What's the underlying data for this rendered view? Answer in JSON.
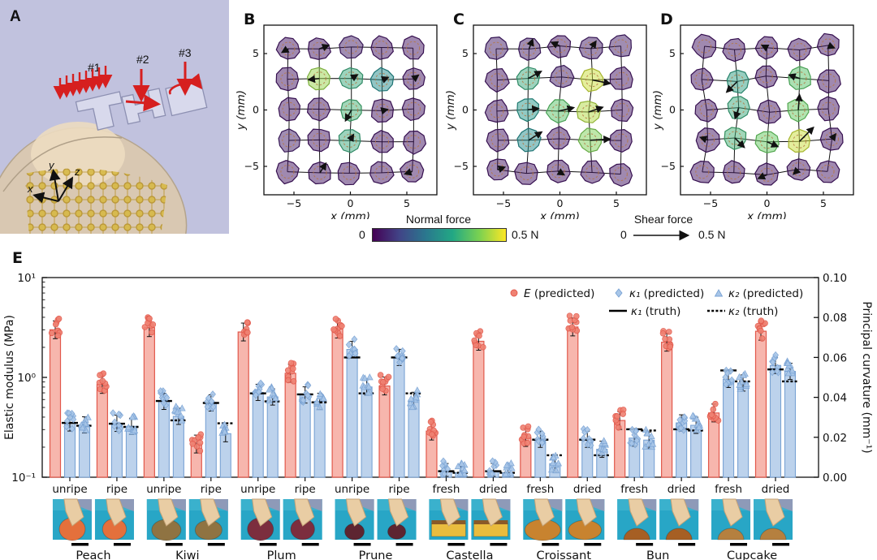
{
  "panelA": {
    "label": "A",
    "stamps": [
      "#1",
      "#2",
      "#3"
    ],
    "axis_labels": [
      "x",
      "y",
      "z"
    ],
    "background_color": "#c1c2de",
    "arrow_color": "#d61f1f"
  },
  "force_maps": {
    "xlabel": "x (mm)",
    "ylabel": "y (mm)",
    "xticks": [
      "−5",
      "0",
      "5"
    ],
    "yticks": [
      "5",
      "0",
      "−5"
    ],
    "colorbar": {
      "title": "Normal force",
      "min_label": "0",
      "max_label": "0.5 N"
    },
    "shear_legend": {
      "title": "Shear force",
      "min_label": "0",
      "max_label": "0.5 N"
    }
  },
  "chart_data": [
    {
      "type": "heatmap",
      "panel": "B",
      "stamp_shape": "T",
      "x_mm": [
        -5.5,
        -2.75,
        0,
        2.75,
        5.5
      ],
      "y_mm": [
        5.5,
        2.75,
        0,
        -2.75,
        -5.5
      ],
      "normal_force_N": [
        [
          0.03,
          0.03,
          0.04,
          0.03,
          0.03
        ],
        [
          0.03,
          0.42,
          0.3,
          0.24,
          0.03
        ],
        [
          0.03,
          0.03,
          0.32,
          0.03,
          0.03
        ],
        [
          0.04,
          0.03,
          0.3,
          0.03,
          0.03
        ],
        [
          0.03,
          0.03,
          0.03,
          0.03,
          0.03
        ]
      ],
      "force_range_N": [
        0,
        0.5
      ],
      "distort": 1.5,
      "shear_arrows": [
        {
          "x": -5.5,
          "y": 5.5,
          "dx": -0.5,
          "dy": -0.3
        },
        {
          "x": -2.75,
          "y": 5.5,
          "dx": 0.8,
          "dy": 0.3
        },
        {
          "x": -2.75,
          "y": 2.75,
          "dx": -0.9,
          "dy": -0.1
        },
        {
          "x": 0,
          "y": 2.75,
          "dx": 0.5,
          "dy": 0.3
        },
        {
          "x": 2.75,
          "y": 2.75,
          "dx": 0.5,
          "dy": 0.2
        },
        {
          "x": 5.5,
          "y": 2.75,
          "dx": 0.4,
          "dy": 0.3
        },
        {
          "x": 0,
          "y": 0,
          "dx": -0.5,
          "dy": -0.9
        },
        {
          "x": 2.75,
          "y": 0,
          "dx": 0.4,
          "dy": 0.1
        },
        {
          "x": 0,
          "y": -2.75,
          "dx": 0.3,
          "dy": 0.5
        },
        {
          "x": -2.75,
          "y": -5.5,
          "dx": 0.5,
          "dy": 0.8
        },
        {
          "x": 5.5,
          "y": -5.5,
          "dx": -0.6,
          "dy": -0.2
        }
      ]
    },
    {
      "type": "heatmap",
      "panel": "C",
      "stamp_shape": "H",
      "x_mm": [
        -5.5,
        -2.75,
        0,
        2.75,
        5.5
      ],
      "y_mm": [
        5.5,
        2.75,
        0,
        -2.75,
        -5.5
      ],
      "normal_force_N": [
        [
          0.04,
          0.04,
          0.03,
          0.04,
          0.04
        ],
        [
          0.03,
          0.3,
          0.04,
          0.46,
          0.03
        ],
        [
          0.03,
          0.26,
          0.36,
          0.44,
          0.03
        ],
        [
          0.03,
          0.24,
          0.03,
          0.4,
          0.03
        ],
        [
          0.03,
          0.03,
          0.03,
          0.03,
          0.03
        ]
      ],
      "force_range_N": [
        0,
        0.5
      ],
      "distort": 3,
      "shear_arrows": [
        {
          "x": -2.75,
          "y": 5.5,
          "dx": 0.3,
          "dy": 0.8
        },
        {
          "x": 0,
          "y": 5.5,
          "dx": -0.7,
          "dy": 0.3
        },
        {
          "x": 2.75,
          "y": 5.5,
          "dx": 0.4,
          "dy": 0.6
        },
        {
          "x": -2.75,
          "y": 2.75,
          "dx": 1.1,
          "dy": 0.6
        },
        {
          "x": 2.75,
          "y": 2.75,
          "dx": 1.5,
          "dy": -0.3
        },
        {
          "x": -2.75,
          "y": 0,
          "dx": 0.9,
          "dy": 0.1
        },
        {
          "x": 0,
          "y": 0,
          "dx": 1.3,
          "dy": 0.3
        },
        {
          "x": 2.75,
          "y": 0,
          "dx": 1.2,
          "dy": 0.4
        },
        {
          "x": -2.75,
          "y": -2.75,
          "dx": 1.1,
          "dy": 0.7
        },
        {
          "x": 2.75,
          "y": -2.75,
          "dx": 1.7,
          "dy": 0.1
        },
        {
          "x": -5.5,
          "y": -5.5,
          "dx": 0.6,
          "dy": 0.2
        },
        {
          "x": 0,
          "y": -5.5,
          "dx": 0.5,
          "dy": -0.3
        }
      ]
    },
    {
      "type": "heatmap",
      "panel": "D",
      "stamp_shape": "U",
      "x_mm": [
        -5.5,
        -2.75,
        0,
        2.75,
        5.5
      ],
      "y_mm": [
        5.5,
        2.75,
        0,
        -2.75,
        -5.5
      ],
      "normal_force_N": [
        [
          0.03,
          0.03,
          0.03,
          0.03,
          0.03
        ],
        [
          0.03,
          0.28,
          0.03,
          0.36,
          0.03
        ],
        [
          0.03,
          0.3,
          0.03,
          0.38,
          0.03
        ],
        [
          0.03,
          0.32,
          0.38,
          0.46,
          0.03
        ],
        [
          0.03,
          0.03,
          0.03,
          0.03,
          0.03
        ]
      ],
      "force_range_N": [
        0,
        0.5
      ],
      "distort": 4,
      "shear_arrows": [
        {
          "x": -2.75,
          "y": 2.75,
          "dx": -0.9,
          "dy": -0.9
        },
        {
          "x": 2.75,
          "y": 2.75,
          "dx": -0.9,
          "dy": 0.3
        },
        {
          "x": -2.75,
          "y": 0,
          "dx": -0.3,
          "dy": -0.9
        },
        {
          "x": 2.75,
          "y": 0,
          "dx": 0.1,
          "dy": 1.3
        },
        {
          "x": -2.75,
          "y": -2.75,
          "dx": 0.8,
          "dy": -0.8
        },
        {
          "x": 0,
          "y": -2.75,
          "dx": 0.9,
          "dy": -0.4
        },
        {
          "x": 2.75,
          "y": -2.75,
          "dx": 1.2,
          "dy": 1.2
        },
        {
          "x": 0,
          "y": 5.5,
          "dx": -0.4,
          "dy": 0.2
        },
        {
          "x": 5.5,
          "y": 5.5,
          "dx": 0.5,
          "dy": -0.2
        },
        {
          "x": -5.5,
          "y": -2.75,
          "dx": -0.6,
          "dy": 0.2
        },
        {
          "x": 0,
          "y": -5.5,
          "dx": -0.7,
          "dy": -0.3
        },
        {
          "x": 2.75,
          "y": -5.5,
          "dx": -0.4,
          "dy": -0.4
        },
        {
          "x": 5.5,
          "y": -2.75,
          "dx": 0.3,
          "dy": 0.4
        }
      ]
    },
    {
      "type": "bar",
      "panel": "E",
      "ylabel_left": "Elastic modulus (MPa)",
      "ylabel_right": "Principal curvature (mm⁻¹)",
      "yaxis_left": {
        "scale": "log",
        "min": 0.1,
        "max": 10,
        "tick_labels": [
          "10⁻¹",
          "10⁰",
          "10¹"
        ]
      },
      "yaxis_right": {
        "scale": "linear",
        "min": 0,
        "max": 0.1,
        "tick_labels": [
          "0.00",
          "0.02",
          "0.04",
          "0.06",
          "0.08",
          "0.10"
        ]
      },
      "legend": [
        "E (predicted)",
        "κ₁ (predicted)",
        "κ₂ (predicted)",
        "κ₁ (truth)",
        "κ₂ (truth)"
      ],
      "groups": [
        {
          "food": "Peach",
          "condition": "unripe",
          "E_MPa": 3.0,
          "k1_pred": 0.0272,
          "k2_pred": 0.0262,
          "k1_truth": 0.0272,
          "k2_truth": 0.0258
        },
        {
          "food": "Peach",
          "condition": "ripe",
          "E_MPa": 0.85,
          "k1_pred": 0.027,
          "k2_pred": 0.0255,
          "k1_truth": 0.0268,
          "k2_truth": 0.0252
        },
        {
          "food": "Kiwi",
          "condition": "unripe",
          "E_MPa": 3.15,
          "k1_pred": 0.038,
          "k2_pred": 0.0305,
          "k1_truth": 0.0382,
          "k2_truth": 0.0285
        },
        {
          "food": "Kiwi",
          "condition": "ripe",
          "E_MPa": 0.215,
          "k1_pred": 0.0372,
          "k2_pred": 0.0218,
          "k1_truth": 0.0372,
          "k2_truth": 0.027
        },
        {
          "food": "Plum",
          "condition": "unripe",
          "E_MPa": 2.85,
          "k1_pred": 0.0425,
          "k2_pred": 0.0402,
          "k1_truth": 0.042,
          "k2_truth": 0.038
        },
        {
          "food": "Plum",
          "condition": "ripe",
          "E_MPa": 1.1,
          "k1_pred": 0.0412,
          "k2_pred": 0.038,
          "k1_truth": 0.0415,
          "k2_truth": 0.0375
        },
        {
          "food": "Prune",
          "condition": "unripe",
          "E_MPa": 3.05,
          "k1_pred": 0.064,
          "k2_pred": 0.0452,
          "k1_truth": 0.06,
          "k2_truth": 0.042
        },
        {
          "food": "Prune",
          "condition": "ripe",
          "E_MPa": 0.82,
          "k1_pred": 0.06,
          "k2_pred": 0.0385,
          "k1_truth": 0.06,
          "k2_truth": 0.042
        },
        {
          "food": "Castella",
          "condition": "fresh",
          "E_MPa": 0.29,
          "k1_pred": 0.0028,
          "k2_pred": 0.0022,
          "k1_truth": 0.003,
          "k2_truth": 0.0022
        },
        {
          "food": "Castella",
          "condition": "dried",
          "E_MPa": 2.3,
          "k1_pred": 0.0028,
          "k2_pred": 0.0022,
          "k1_truth": 0.003,
          "k2_truth": 0.0022
        },
        {
          "food": "Croissant",
          "condition": "fresh",
          "E_MPa": 0.25,
          "k1_pred": 0.019,
          "k2_pred": 0.0068,
          "k1_truth": 0.0188,
          "k2_truth": 0.011
        },
        {
          "food": "Croissant",
          "condition": "dried",
          "E_MPa": 3.2,
          "k1_pred": 0.019,
          "k2_pred": 0.014,
          "k1_truth": 0.0188,
          "k2_truth": 0.011
        },
        {
          "food": "Bun",
          "condition": "fresh",
          "E_MPa": 0.37,
          "k1_pred": 0.0196,
          "k2_pred": 0.0186,
          "k1_truth": 0.024,
          "k2_truth": 0.0234
        },
        {
          "food": "Bun",
          "condition": "dried",
          "E_MPa": 2.25,
          "k1_pred": 0.0272,
          "k2_pred": 0.026,
          "k1_truth": 0.024,
          "k2_truth": 0.0234
        },
        {
          "food": "Cupcake",
          "condition": "fresh",
          "E_MPa": 0.44,
          "k1_pred": 0.049,
          "k2_pred": 0.0472,
          "k1_truth": 0.0535,
          "k2_truth": 0.048
        },
        {
          "food": "Cupcake",
          "condition": "dried",
          "E_MPa": 2.9,
          "k1_pred": 0.056,
          "k2_pred": 0.053,
          "k1_truth": 0.054,
          "k2_truth": 0.048
        }
      ],
      "foods": [
        {
          "name": "Peach",
          "conditions": [
            "unripe",
            "ripe"
          ],
          "photo_color": "#e4703c",
          "shape": "circle"
        },
        {
          "name": "Kiwi",
          "conditions": [
            "unripe",
            "ripe"
          ],
          "photo_color": "#8f7342",
          "shape": "ellipse"
        },
        {
          "name": "Plum",
          "conditions": [
            "unripe",
            "ripe"
          ],
          "photo_color": "#7c2e3e",
          "shape": "circle"
        },
        {
          "name": "Prune",
          "conditions": [
            "unripe",
            "ripe"
          ],
          "photo_color": "#5d2531",
          "shape": "small"
        },
        {
          "name": "Castella",
          "conditions": [
            "fresh",
            "dried"
          ],
          "photo_color": "#eabc3e",
          "shape": "block"
        },
        {
          "name": "Croissant",
          "conditions": [
            "fresh",
            "dried"
          ],
          "photo_color": "#c8832f",
          "shape": "wide"
        },
        {
          "name": "Bun",
          "conditions": [
            "fresh",
            "dried"
          ],
          "photo_color": "#a65f24",
          "shape": "dome"
        },
        {
          "name": "Cupcake",
          "conditions": [
            "fresh",
            "dried"
          ],
          "photo_color": "#b5803f",
          "shape": "dome"
        }
      ],
      "colors": {
        "E_bar_fill": "#f7b6ad",
        "E_bar_edge": "#e2584b",
        "E_dot": "#ef8172",
        "k_bar_fill": "#bcd2ec",
        "k_bar_edge": "#7aa3d4",
        "k_marker": "#a8c6e8",
        "truth_line": "#000000",
        "photo_bg": "#28a6c6"
      }
    }
  ],
  "panelE_label": "E"
}
